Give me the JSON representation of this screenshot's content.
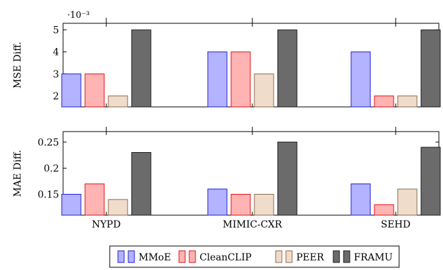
{
  "chart_data": [
    {
      "type": "bar",
      "categories": [
        "NYPD",
        "MIMIC-CXR",
        "SEHD"
      ],
      "ylabel": "MSE Diff.",
      "multiplier": "·10⁻³",
      "ylim": [
        1.5,
        5.3
      ],
      "yticks": [
        2,
        3,
        4,
        5
      ],
      "yticklabels": [
        "2",
        "3",
        "4",
        "5"
      ],
      "series": [
        {
          "name": "MMoE",
          "values": [
            3,
            4,
            4
          ]
        },
        {
          "name": "CleanCLIP",
          "values": [
            3,
            4,
            2
          ]
        },
        {
          "name": "PEER",
          "values": [
            2,
            3,
            2
          ]
        },
        {
          "name": "FRAMU",
          "values": [
            5,
            5,
            5
          ]
        }
      ]
    },
    {
      "type": "bar",
      "categories": [
        "NYPD",
        "MIMIC-CXR",
        "SEHD"
      ],
      "ylabel": "MAE Diff.",
      "ylim": [
        0.11,
        0.27
      ],
      "yticks": [
        0.15,
        0.2,
        0.25
      ],
      "yticklabels": [
        "0.15",
        "0.2",
        "0.25"
      ],
      "series": [
        {
          "name": "MMoE",
          "values": [
            0.15,
            0.16,
            0.17
          ]
        },
        {
          "name": "CleanCLIP",
          "values": [
            0.17,
            0.15,
            0.13
          ]
        },
        {
          "name": "PEER",
          "values": [
            0.14,
            0.15,
            0.16
          ]
        },
        {
          "name": "FRAMU",
          "values": [
            0.23,
            0.25,
            0.24
          ]
        }
      ]
    }
  ],
  "legend": {
    "position": "bottom",
    "entries": [
      "MMoE",
      "CleanCLIP",
      "PEER",
      "FRAMU"
    ]
  },
  "colors": {
    "MMoE": {
      "fill": "#b3b3ff",
      "stroke": "#1c1cd6"
    },
    "CleanCLIP": {
      "fill": "#ffb3b3",
      "stroke": "#dd1111"
    },
    "PEER": {
      "fill": "#efdccb",
      "stroke": "#8a6a4a"
    },
    "FRAMU": {
      "fill": "#6b6b6b",
      "stroke": "#1a1a1a"
    }
  }
}
